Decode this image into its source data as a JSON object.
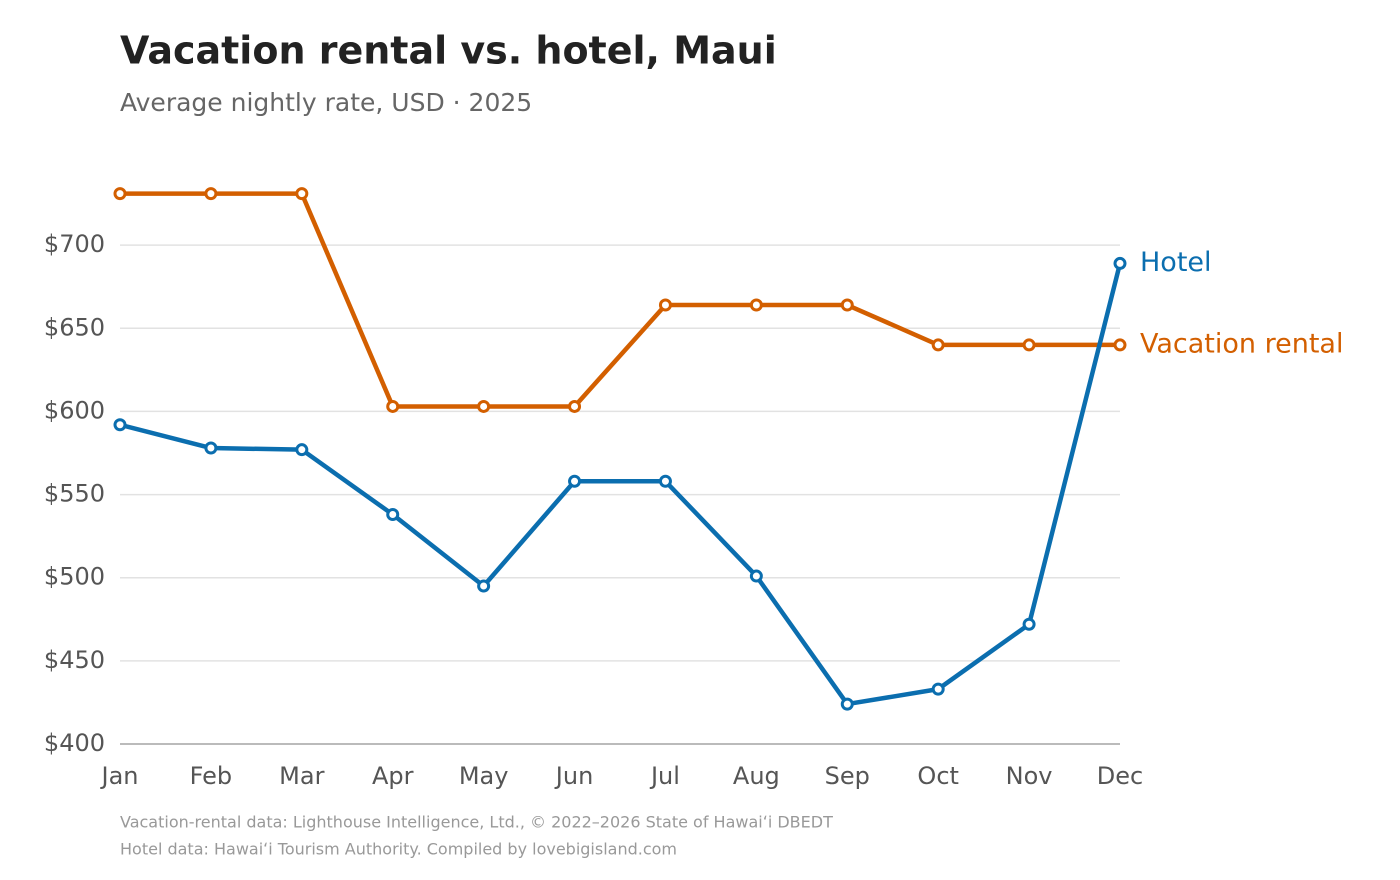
{
  "chart_data": {
    "type": "line",
    "title": "Vacation rental vs. hotel, Maui",
    "subtitle": "Average nightly rate, USD · 2025",
    "categories": [
      "Jan",
      "Feb",
      "Mar",
      "Apr",
      "May",
      "Jun",
      "Jul",
      "Aug",
      "Sep",
      "Oct",
      "Nov",
      "Dec"
    ],
    "series": [
      {
        "name": "Vacation rental",
        "color": "#d35f00",
        "values": [
          731,
          731,
          731,
          603,
          603,
          603,
          664,
          664,
          664,
          640,
          640,
          640
        ]
      },
      {
        "name": "Hotel",
        "color": "#0b6eaf",
        "values": [
          592,
          578,
          577,
          538,
          495,
          558,
          558,
          501,
          424,
          433,
          472,
          689
        ]
      }
    ],
    "ylim": [
      400,
      750
    ],
    "yticks": [
      {
        "value": 400,
        "label": "$400"
      },
      {
        "value": 450,
        "label": "$450"
      },
      {
        "value": 500,
        "label": "$500"
      },
      {
        "value": 550,
        "label": "$550"
      },
      {
        "value": 600,
        "label": "$600"
      },
      {
        "value": 650,
        "label": "$650"
      },
      {
        "value": 700,
        "label": "$700"
      }
    ],
    "grid": true,
    "notes": [
      "Vacation-rental data: Lighthouse Intelligence, Ltd., © 2022–2026 State of Hawaiʻi DBEDT",
      "Hotel data: Hawaiʻi Tourism Authority. Compiled by lovebigisland.com"
    ]
  }
}
